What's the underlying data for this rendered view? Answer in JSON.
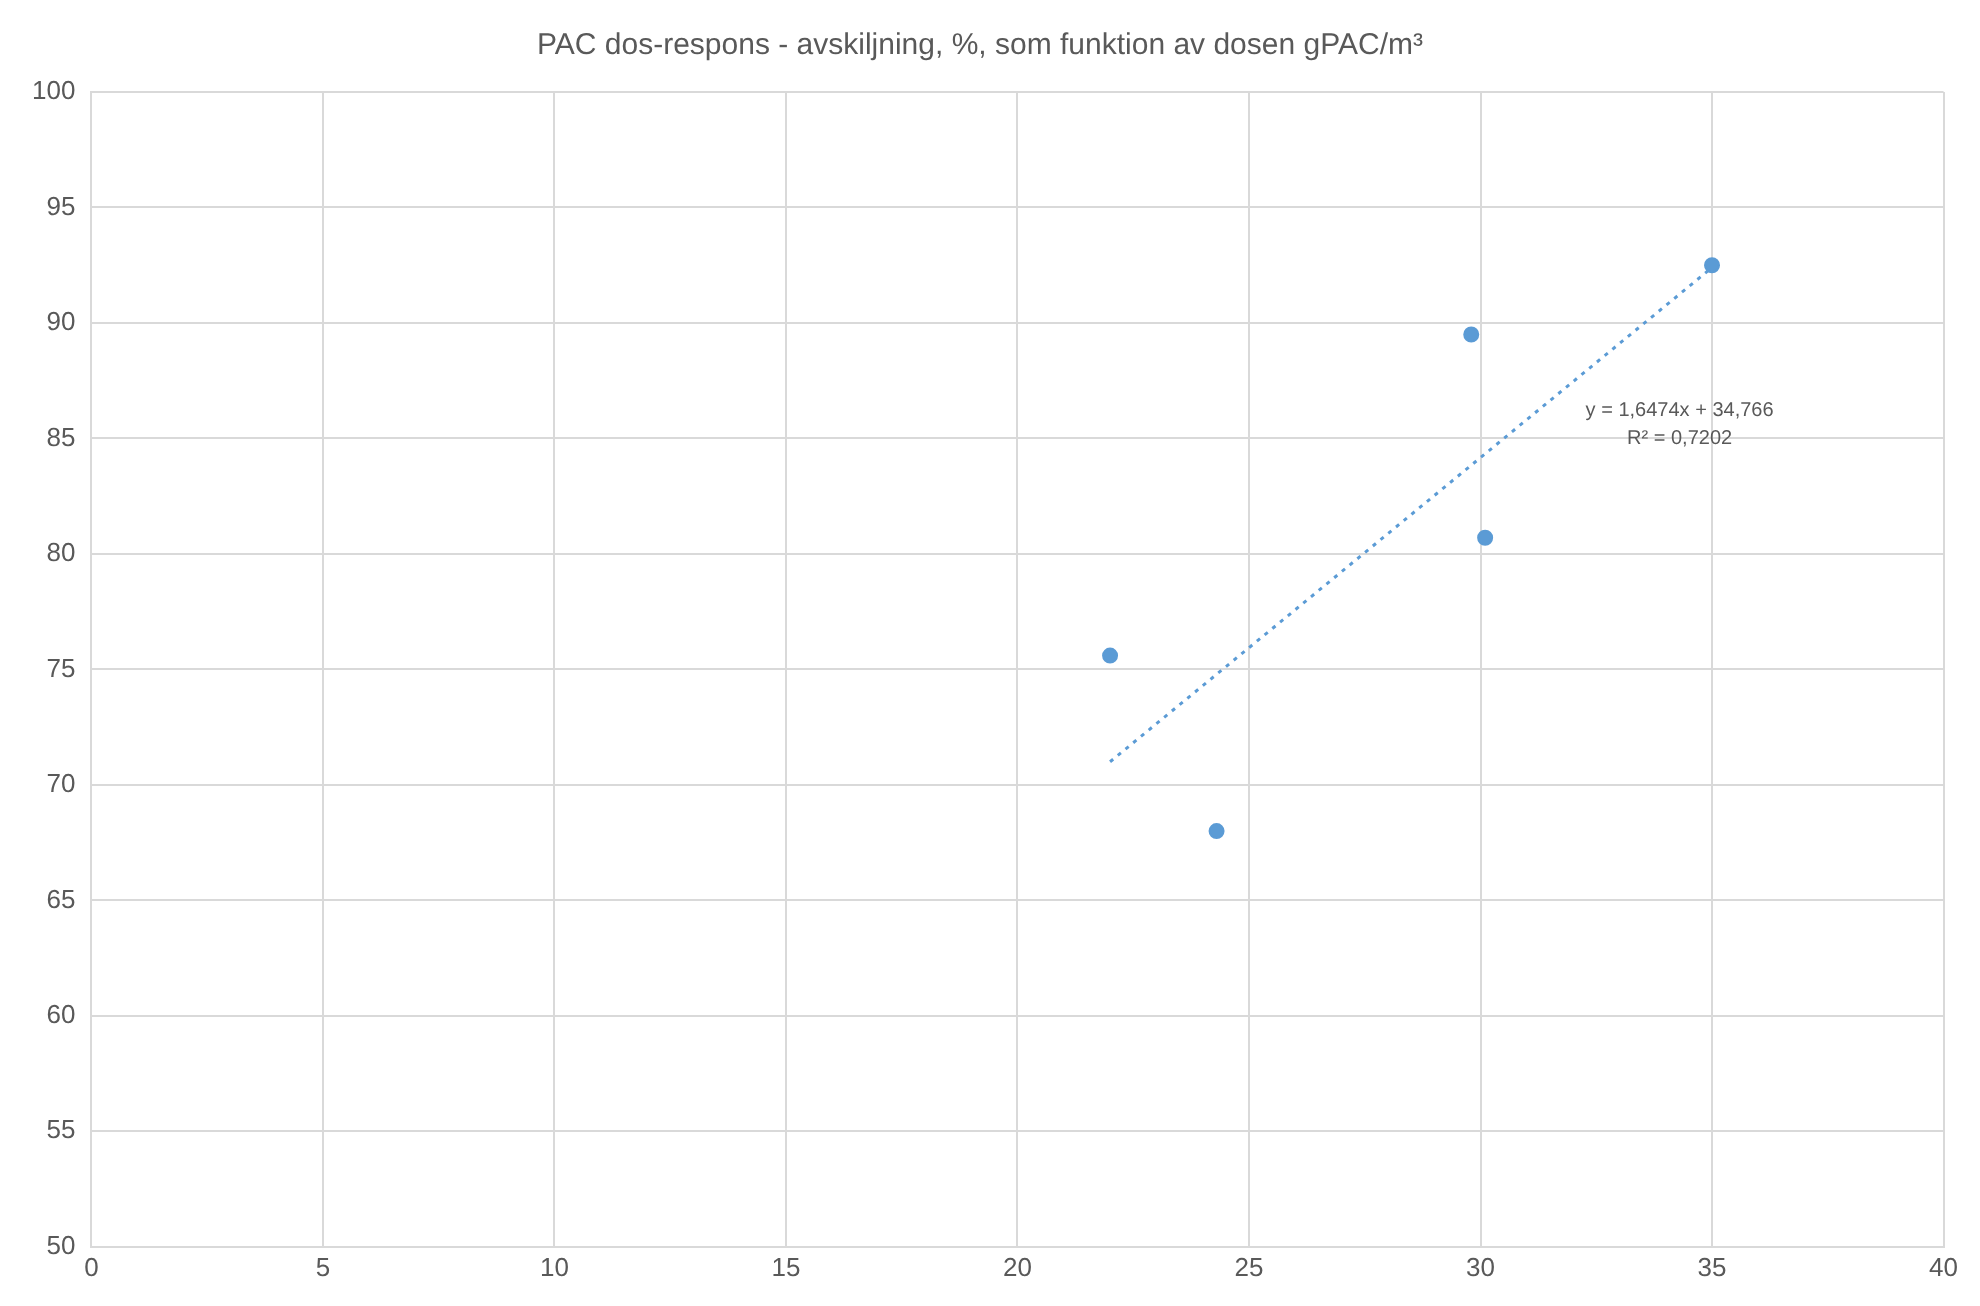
{
  "chart_data": {
    "type": "scatter",
    "title": "PAC dos-respons - avskiljning, %, som funktion av dosen gPAC/m³",
    "x": [
      22,
      24.3,
      29.8,
      30.1,
      35
    ],
    "series": [
      {
        "color": "#5b9bd5",
        "values": [
          75.6,
          68.0,
          89.5,
          80.7,
          92.5
        ],
        "marker": "circle"
      },
      {
        "type": "line",
        "x": [
          22,
          35
        ],
        "values": [
          71.0,
          92.4
        ],
        "color": "#5b9bd5",
        "line_style": "dotted",
        "marker": "none"
      }
    ],
    "xlim": [
      0,
      40
    ],
    "xticks": [
      0,
      5,
      10,
      15,
      20,
      25,
      30,
      35,
      40
    ],
    "ylim": [
      50,
      100
    ],
    "yticks": [
      50,
      55,
      60,
      65,
      70,
      75,
      80,
      85,
      90,
      95,
      100
    ],
    "grid": true,
    "legend": false,
    "annotations": [
      "y = 1,6474x + 34,766",
      "R² = 0,7202"
    ]
  }
}
